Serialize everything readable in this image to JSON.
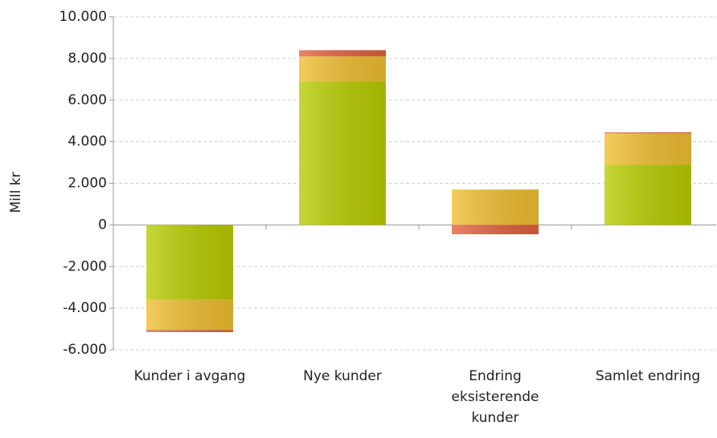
{
  "chart_data": {
    "type": "bar",
    "stacked": true,
    "y_label": "Mill kr",
    "categories": [
      "Kunder i avgang",
      "Nye kunder",
      "Endring eksisterende kunder",
      "Samlet endring"
    ],
    "series": [
      {
        "color": "#b8cc00",
        "values": [
          -3600,
          6900,
          0,
          2900
        ]
      },
      {
        "color": "#f0be30",
        "values": [
          -1450,
          1200,
          1700,
          1500
        ]
      },
      {
        "color": "#e0603f",
        "values": [
          -100,
          300,
          -450,
          50
        ]
      }
    ],
    "ylim": [
      -6000,
      10000
    ],
    "yticks": [
      {
        "value": -6000,
        "label": "-6.000"
      },
      {
        "value": -4000,
        "label": "-4.000"
      },
      {
        "value": -2000,
        "label": "-2.000"
      },
      0,
      {
        "value": 2000,
        "label": "2.000"
      },
      {
        "value": 4000,
        "label": "4.000"
      },
      {
        "value": 6000,
        "label": "6.000"
      },
      {
        "value": 8000,
        "label": "8.000"
      },
      {
        "value": 10000,
        "label": "10.000"
      }
    ],
    "grid": true
  }
}
